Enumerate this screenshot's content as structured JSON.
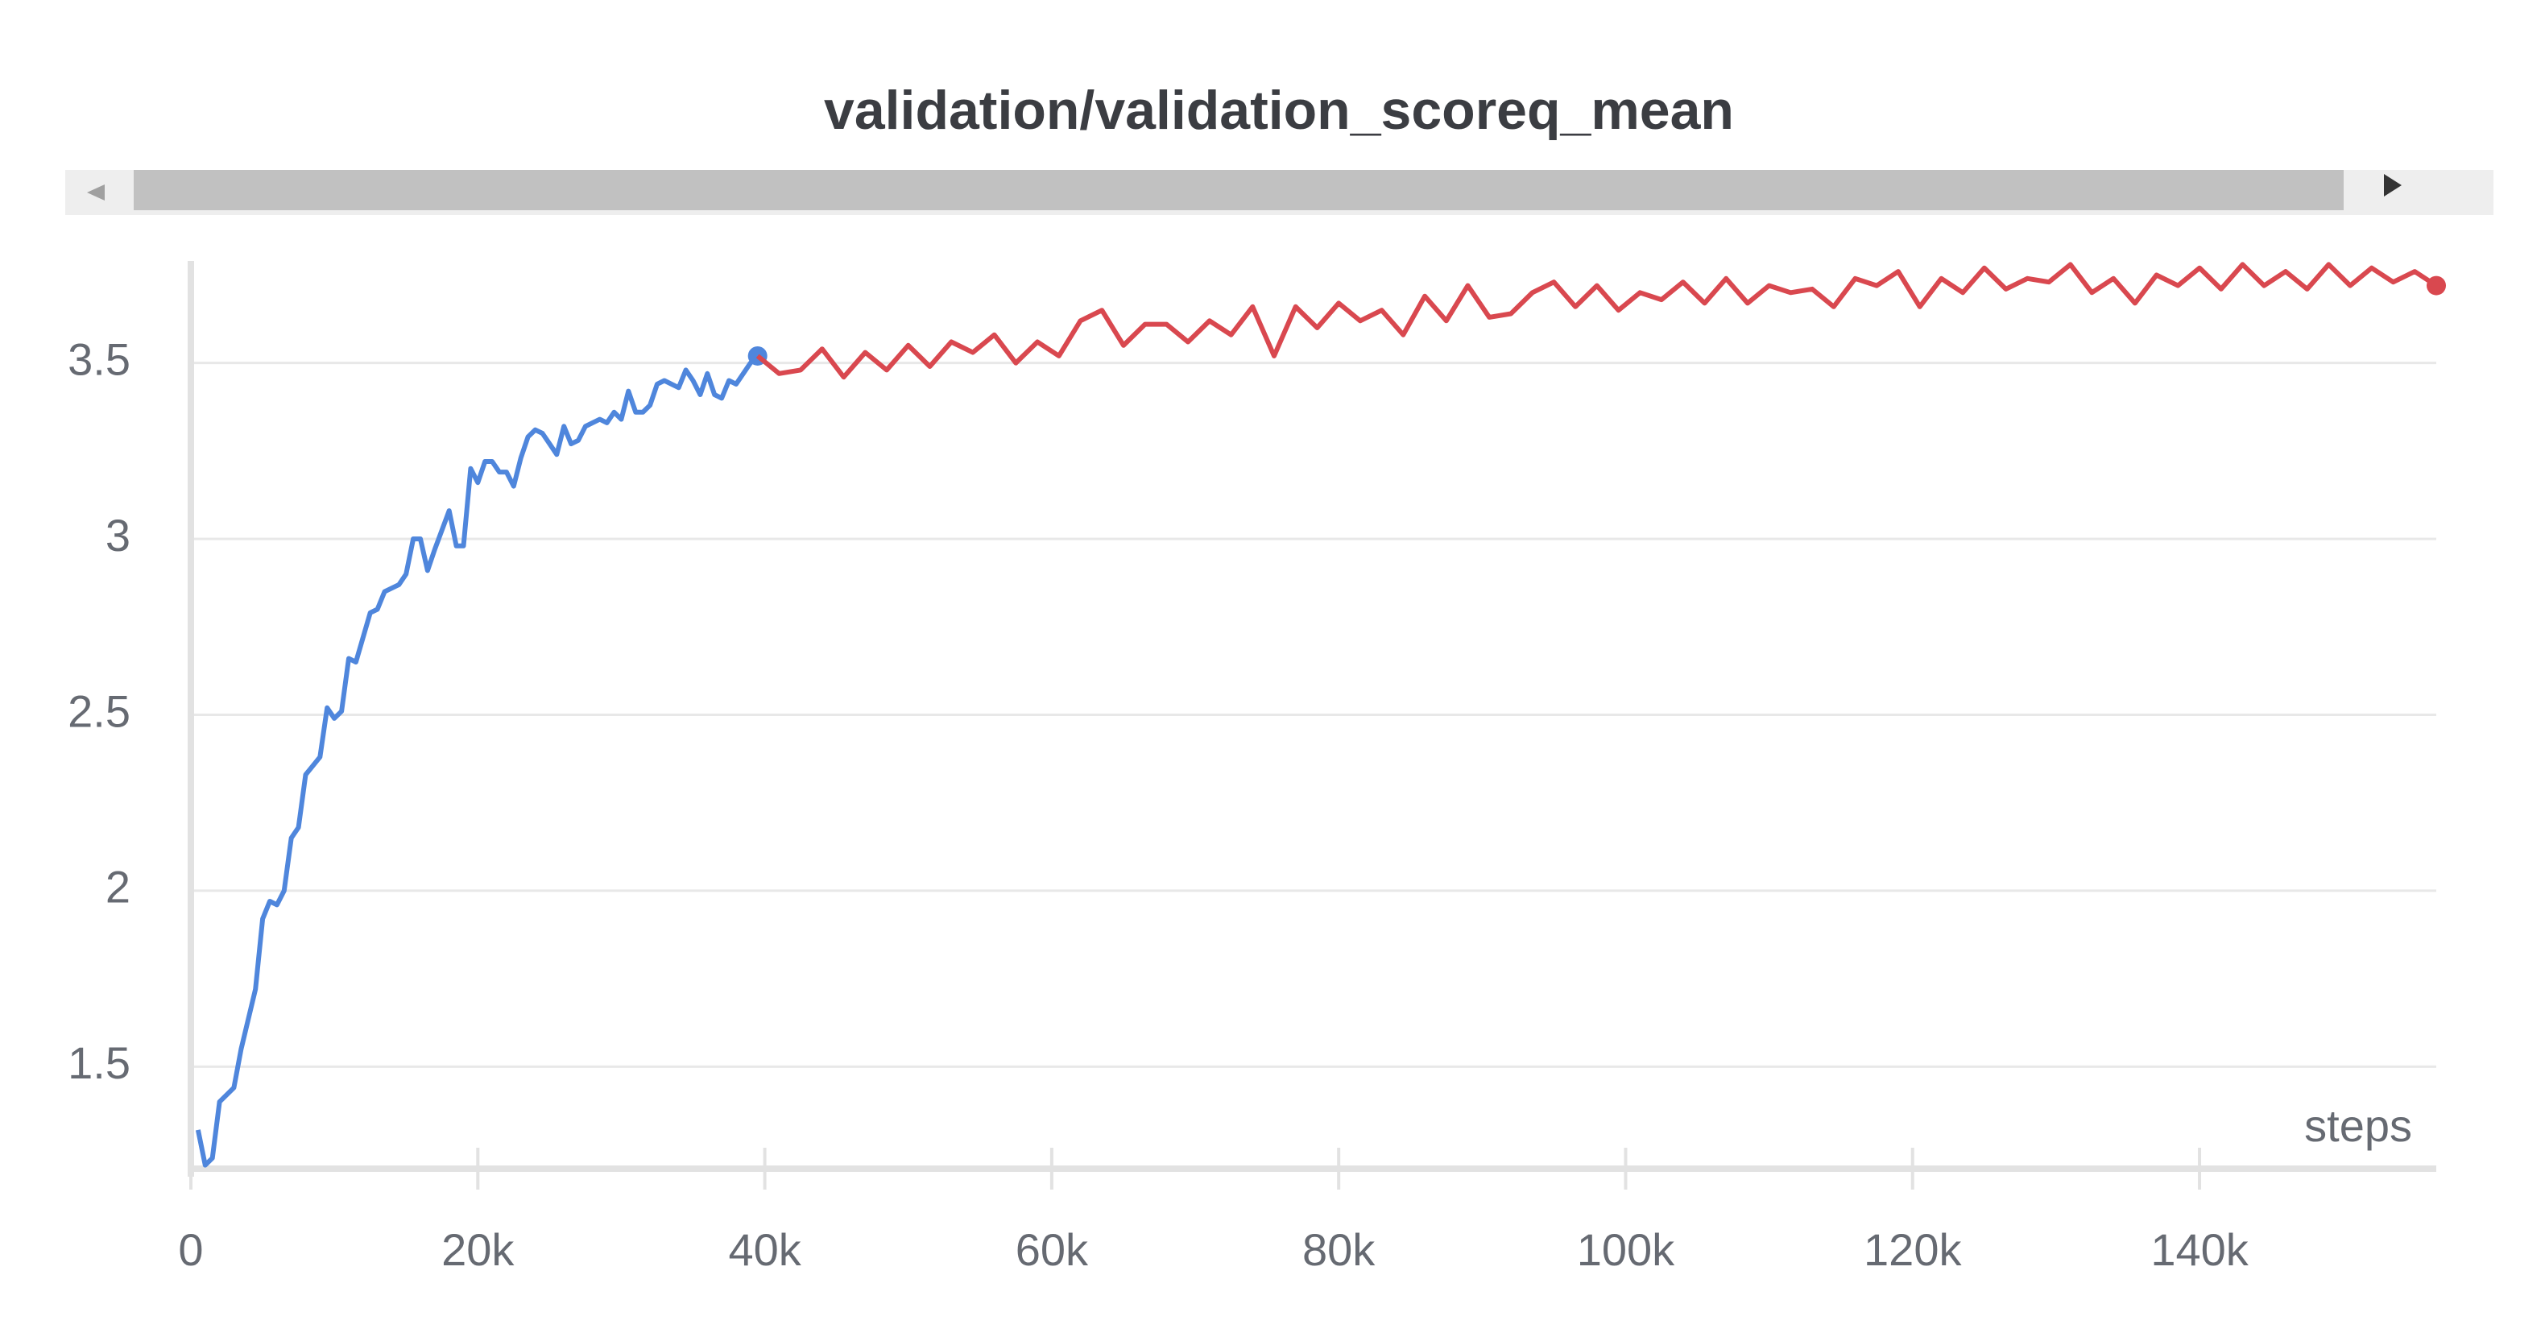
{
  "chart_data": {
    "type": "line",
    "title": "validation/validation_scoreq_mean",
    "x_label": "steps",
    "xlim": [
      0,
      156500
    ],
    "ylim": [
      1.21,
      3.79
    ],
    "xticks": [
      0,
      {
        "value": 20000,
        "label": "20k"
      },
      {
        "value": 40000,
        "label": "40k"
      },
      {
        "value": 60000,
        "label": "60k"
      },
      {
        "value": 80000,
        "label": "80k"
      },
      {
        "value": 100000,
        "label": "100k"
      },
      {
        "value": 120000,
        "label": "120k"
      },
      {
        "value": 140000,
        "label": "140k"
      }
    ],
    "yticks": [
      1.5,
      2,
      2.5,
      3,
      3.5
    ],
    "grid": true,
    "series": [
      {
        "color": "#4f86dc",
        "x": [
          500,
          1000,
          1500,
          2000,
          3000,
          3500,
          4500,
          5000,
          5500,
          6000,
          6500,
          7000,
          7500,
          8000,
          9000,
          9500,
          10000,
          10500,
          11000,
          11500,
          12500,
          13000,
          13500,
          14500,
          15000,
          15500,
          16000,
          16500,
          17000,
          18000,
          18500,
          19000,
          19500,
          20000,
          20500,
          21000,
          21500,
          22000,
          22500,
          23000,
          23500,
          24000,
          24500,
          25000,
          25500,
          26000,
          26500,
          27000,
          27500,
          28500,
          29000,
          29500,
          30000,
          30500,
          31000,
          31500,
          32000,
          32500,
          33000,
          33500,
          34000,
          34500,
          35000,
          35500,
          36000,
          36500,
          37000,
          37500,
          38000,
          38500,
          39000,
          39500
        ],
        "values": [
          1.32,
          1.22,
          1.24,
          1.4,
          1.44,
          1.55,
          1.72,
          1.92,
          1.97,
          1.96,
          2.0,
          2.15,
          2.18,
          2.33,
          2.38,
          2.52,
          2.49,
          2.51,
          2.66,
          2.65,
          2.79,
          2.8,
          2.85,
          2.87,
          2.9,
          3.0,
          3.0,
          2.91,
          2.97,
          3.08,
          2.98,
          2.98,
          3.2,
          3.16,
          3.22,
          3.22,
          3.19,
          3.19,
          3.15,
          3.23,
          3.29,
          3.31,
          3.3,
          3.27,
          3.24,
          3.32,
          3.27,
          3.28,
          3.32,
          3.34,
          3.33,
          3.36,
          3.34,
          3.42,
          3.36,
          3.36,
          3.38,
          3.44,
          3.45,
          3.44,
          3.43,
          3.48,
          3.45,
          3.41,
          3.47,
          3.41,
          3.4,
          3.45,
          3.44,
          3.47,
          3.5,
          3.52
        ]
      },
      {
        "color": "#d9484f",
        "x": [
          39500,
          41000,
          42500,
          44000,
          45500,
          47000,
          48500,
          50000,
          51500,
          53000,
          54500,
          56000,
          57500,
          59000,
          60500,
          62000,
          63500,
          65000,
          66500,
          68000,
          69500,
          71000,
          72500,
          74000,
          75500,
          77000,
          78500,
          80000,
          81500,
          83000,
          84500,
          86000,
          87500,
          89000,
          90500,
          92000,
          93500,
          95000,
          96500,
          98000,
          99500,
          101000,
          102500,
          104000,
          105500,
          107000,
          108500,
          110000,
          111500,
          113000,
          114500,
          116000,
          117500,
          119000,
          120500,
          122000,
          123500,
          125000,
          126500,
          128000,
          129500,
          131000,
          132500,
          134000,
          135500,
          137000,
          138500,
          140000,
          141500,
          143000,
          144500,
          146000,
          147500,
          149000,
          150500,
          152000,
          153500,
          155000,
          156500
        ],
        "values": [
          3.52,
          3.47,
          3.48,
          3.54,
          3.46,
          3.53,
          3.48,
          3.55,
          3.49,
          3.56,
          3.53,
          3.58,
          3.5,
          3.56,
          3.52,
          3.62,
          3.65,
          3.55,
          3.61,
          3.61,
          3.56,
          3.62,
          3.58,
          3.66,
          3.52,
          3.66,
          3.6,
          3.67,
          3.62,
          3.65,
          3.58,
          3.69,
          3.62,
          3.72,
          3.63,
          3.64,
          3.7,
          3.73,
          3.66,
          3.72,
          3.65,
          3.7,
          3.68,
          3.73,
          3.67,
          3.74,
          3.67,
          3.72,
          3.7,
          3.71,
          3.66,
          3.74,
          3.72,
          3.76,
          3.66,
          3.74,
          3.7,
          3.77,
          3.71,
          3.74,
          3.73,
          3.78,
          3.7,
          3.74,
          3.67,
          3.75,
          3.72,
          3.77,
          3.71,
          3.78,
          3.72,
          3.76,
          3.71,
          3.78,
          3.72,
          3.77,
          3.73,
          3.76,
          3.72
        ]
      }
    ]
  }
}
